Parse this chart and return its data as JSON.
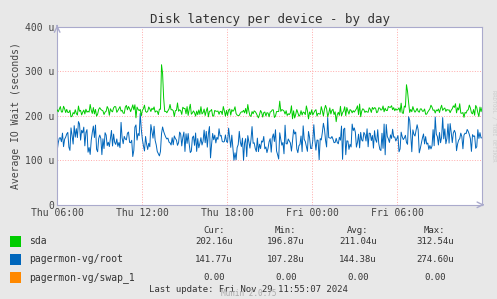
{
  "title": "Disk latency per device - by day",
  "ylabel": "Average IO Wait (seconds)",
  "bg_color": "#e8e8e8",
  "plot_bg_color": "#ffffff",
  "grid_color": "#ffaaaa",
  "ylim": [
    0,
    400
  ],
  "ytick_positions": [
    0,
    100,
    200,
    300,
    400
  ],
  "ytick_labels": [
    "0",
    "100 u",
    "200 u",
    "300 u",
    "400 u"
  ],
  "xtick_positions": [
    0.0,
    0.2,
    0.4,
    0.6,
    0.8
  ],
  "xtick_labels": [
    "Thu 06:00",
    "Thu 12:00",
    "Thu 18:00",
    "Fri 00:00",
    "Fri 06:00"
  ],
  "sda_color": "#00cc00",
  "root_color": "#0066bb",
  "swap_color": "#ff8800",
  "legend_labels": [
    "sda",
    "pagermon-vg/root",
    "pagermon-vg/swap_1"
  ],
  "legend_colors": [
    "#00cc00",
    "#0066bb",
    "#ff8800"
  ],
  "table_headers": [
    "Cur:",
    "Min:",
    "Avg:",
    "Max:"
  ],
  "table_data": [
    [
      "202.16u",
      "196.87u",
      "211.04u",
      "312.54u"
    ],
    [
      "141.77u",
      "107.28u",
      "144.38u",
      "274.60u"
    ],
    [
      "0.00",
      "0.00",
      "0.00",
      "0.00"
    ]
  ],
  "last_update": "Last update: Fri Nov 29 11:55:07 2024",
  "munin_version": "Munin 2.0.75",
  "rrdtool_label": "RRDTOOL / TOBI OETIKER",
  "title_fontsize": 9,
  "axis_label_fontsize": 7,
  "tick_fontsize": 7,
  "table_fontsize": 6.5,
  "arrow_color": "#aaaacc"
}
